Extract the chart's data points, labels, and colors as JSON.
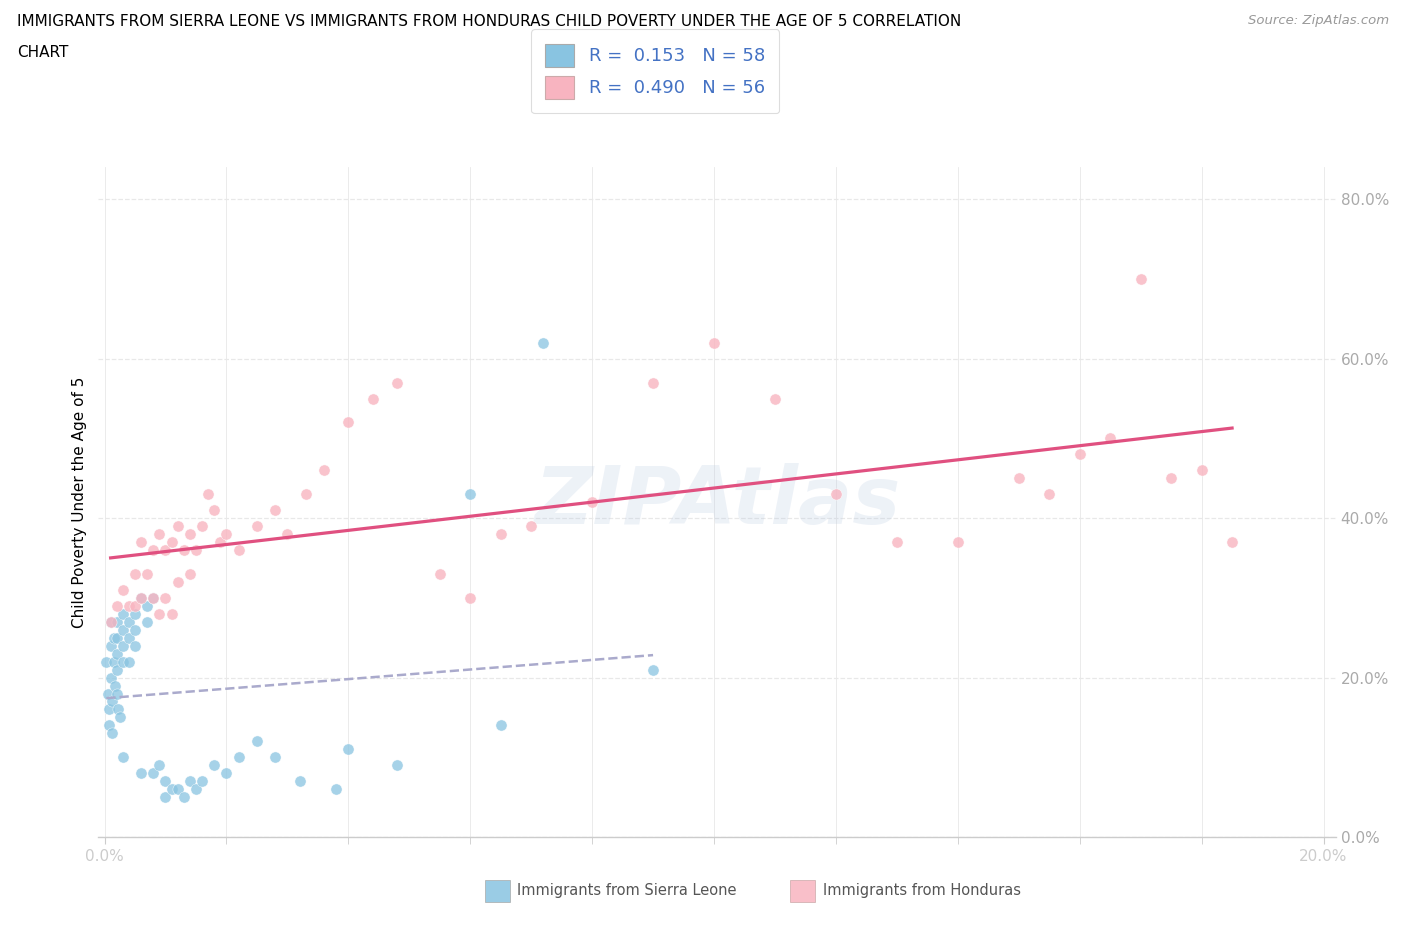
{
  "title_line1": "IMMIGRANTS FROM SIERRA LEONE VS IMMIGRANTS FROM HONDURAS CHILD POVERTY UNDER THE AGE OF 5 CORRELATION",
  "title_line2": "CHART",
  "source": "Source: ZipAtlas.com",
  "ylabel": "Child Poverty Under the Age of 5",
  "xlim": [
    -0.001,
    0.202
  ],
  "ylim": [
    0.0,
    0.84
  ],
  "yticks": [
    0.0,
    0.2,
    0.4,
    0.6,
    0.8
  ],
  "ytick_labels": [
    "0.0%",
    "20.0%",
    "40.0%",
    "60.0%",
    "80.0%"
  ],
  "xtick_major": [
    0.0,
    0.2
  ],
  "xtick_major_labels": [
    "0.0%",
    "20.0%"
  ],
  "xtick_minor": [
    0.02,
    0.04,
    0.06,
    0.08,
    0.1,
    0.12,
    0.14,
    0.16,
    0.18
  ],
  "sierra_leone_color": "#89c4e1",
  "sierra_leone_alpha": 0.75,
  "honduras_color": "#f8b4c0",
  "honduras_alpha": 0.8,
  "trend_sierra_color": "#aaaacc",
  "trend_honduras_color": "#e05080",
  "legend_R_sierra": "0.153",
  "legend_N_sierra": "58",
  "legend_R_honduras": "0.490",
  "legend_N_honduras": "56",
  "sierra_leone_x": [
    0.0003,
    0.0005,
    0.0007,
    0.0008,
    0.001,
    0.001,
    0.001,
    0.0012,
    0.0013,
    0.0015,
    0.0015,
    0.0017,
    0.002,
    0.002,
    0.002,
    0.002,
    0.002,
    0.0022,
    0.0025,
    0.003,
    0.003,
    0.003,
    0.003,
    0.003,
    0.004,
    0.004,
    0.004,
    0.005,
    0.005,
    0.005,
    0.006,
    0.006,
    0.007,
    0.007,
    0.008,
    0.008,
    0.009,
    0.01,
    0.01,
    0.011,
    0.012,
    0.013,
    0.014,
    0.015,
    0.016,
    0.018,
    0.02,
    0.022,
    0.025,
    0.028,
    0.032,
    0.038,
    0.04,
    0.048,
    0.06,
    0.065,
    0.072,
    0.09
  ],
  "sierra_leone_y": [
    0.22,
    0.18,
    0.16,
    0.14,
    0.27,
    0.24,
    0.2,
    0.17,
    0.13,
    0.25,
    0.22,
    0.19,
    0.27,
    0.25,
    0.23,
    0.21,
    0.18,
    0.16,
    0.15,
    0.28,
    0.26,
    0.24,
    0.22,
    0.1,
    0.27,
    0.25,
    0.22,
    0.28,
    0.26,
    0.24,
    0.3,
    0.08,
    0.29,
    0.27,
    0.3,
    0.08,
    0.09,
    0.07,
    0.05,
    0.06,
    0.06,
    0.05,
    0.07,
    0.06,
    0.07,
    0.09,
    0.08,
    0.1,
    0.12,
    0.1,
    0.07,
    0.06,
    0.11,
    0.09,
    0.43,
    0.14,
    0.62,
    0.21
  ],
  "honduras_x": [
    0.001,
    0.002,
    0.003,
    0.004,
    0.005,
    0.005,
    0.006,
    0.006,
    0.007,
    0.008,
    0.008,
    0.009,
    0.009,
    0.01,
    0.01,
    0.011,
    0.011,
    0.012,
    0.012,
    0.013,
    0.014,
    0.014,
    0.015,
    0.016,
    0.017,
    0.018,
    0.019,
    0.02,
    0.022,
    0.025,
    0.028,
    0.03,
    0.033,
    0.036,
    0.04,
    0.044,
    0.048,
    0.055,
    0.06,
    0.065,
    0.07,
    0.08,
    0.09,
    0.1,
    0.11,
    0.12,
    0.13,
    0.14,
    0.15,
    0.155,
    0.16,
    0.165,
    0.17,
    0.175,
    0.18,
    0.185
  ],
  "honduras_y": [
    0.27,
    0.29,
    0.31,
    0.29,
    0.33,
    0.29,
    0.37,
    0.3,
    0.33,
    0.36,
    0.3,
    0.38,
    0.28,
    0.36,
    0.3,
    0.37,
    0.28,
    0.39,
    0.32,
    0.36,
    0.38,
    0.33,
    0.36,
    0.39,
    0.43,
    0.41,
    0.37,
    0.38,
    0.36,
    0.39,
    0.41,
    0.38,
    0.43,
    0.46,
    0.52,
    0.55,
    0.57,
    0.33,
    0.3,
    0.38,
    0.39,
    0.42,
    0.57,
    0.62,
    0.55,
    0.43,
    0.37,
    0.37,
    0.45,
    0.43,
    0.48,
    0.5,
    0.7,
    0.45,
    0.46,
    0.37
  ],
  "watermark": "ZIPAtlas",
  "background_color": "#ffffff",
  "grid_color": "#e8e8e8",
  "text_color_blue": "#4472c4",
  "legend_text_color": "#4472c4"
}
